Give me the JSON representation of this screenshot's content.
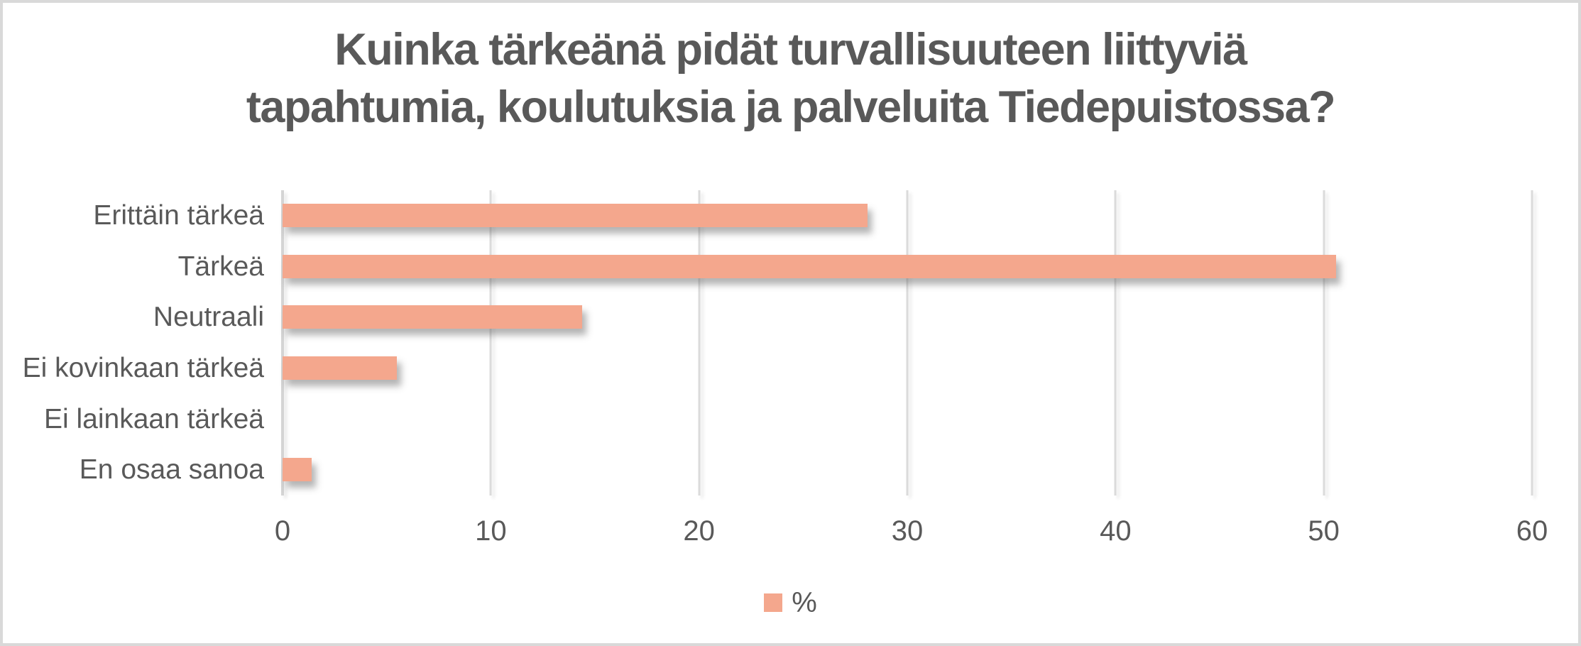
{
  "frame": {
    "background_color": "#FFFFFF",
    "border_color": "#D9D9D9"
  },
  "chart_data": {
    "type": "bar",
    "orientation": "horizontal",
    "title": "Kuinka tärkeänä pidät turvallisuuteen liittyviä tapahtumia, koulutuksia ja palveluita Tiedepuistossa?",
    "title_lines": [
      "Kuinka tärkeänä pidät turvallisuuteen liittyviä",
      "tapahtumia, koulutuksia ja palveluita Tiedepuistossa?"
    ],
    "categories": [
      "Erittäin tärkeä",
      "Tärkeä",
      "Neutraali",
      "Ei kovinkaan tärkeä",
      "Ei lainkaan tärkeä",
      "En osaa sanoa"
    ],
    "series": [
      {
        "name": "%",
        "values": [
          28.1,
          50.6,
          14.4,
          5.5,
          0,
          1.4
        ],
        "color": "#F4A78D"
      }
    ],
    "x_axis": {
      "min": 0,
      "max": 60,
      "tick_interval": 10,
      "ticks": [
        0,
        10,
        20,
        30,
        40,
        50,
        60
      ]
    },
    "y_axis": {
      "label": ""
    },
    "grid": true,
    "gridline_color": "#DBDBDB",
    "axis_line_color": "#D4D4D4",
    "text_color": "#595959",
    "legend": {
      "position": "bottom",
      "entries": [
        {
          "label": "%",
          "swatch_color": "#F4A78D"
        }
      ]
    }
  }
}
